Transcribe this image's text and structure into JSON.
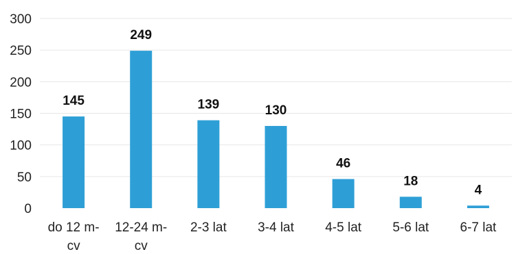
{
  "chart_data": {
    "type": "bar",
    "categories": [
      [
        "do 12 m-",
        "cv"
      ],
      [
        "12-24 m-",
        "cv"
      ],
      [
        "2-3 lat"
      ],
      [
        "3-4 lat"
      ],
      [
        "4-5 lat"
      ],
      [
        "5-6 lat"
      ],
      [
        "6-7 lat"
      ]
    ],
    "values": [
      145,
      249,
      139,
      130,
      46,
      18,
      4
    ],
    "value_labels": [
      "145",
      "249",
      "139",
      "130",
      "46",
      "18",
      "4"
    ],
    "yticks": [
      "0",
      "50",
      "100",
      "150",
      "200",
      "250",
      "300"
    ],
    "ylim": [
      0,
      300
    ],
    "title": "",
    "xlabel": "",
    "ylabel": "",
    "grid": true,
    "bar_color": "#2e9fd6"
  }
}
